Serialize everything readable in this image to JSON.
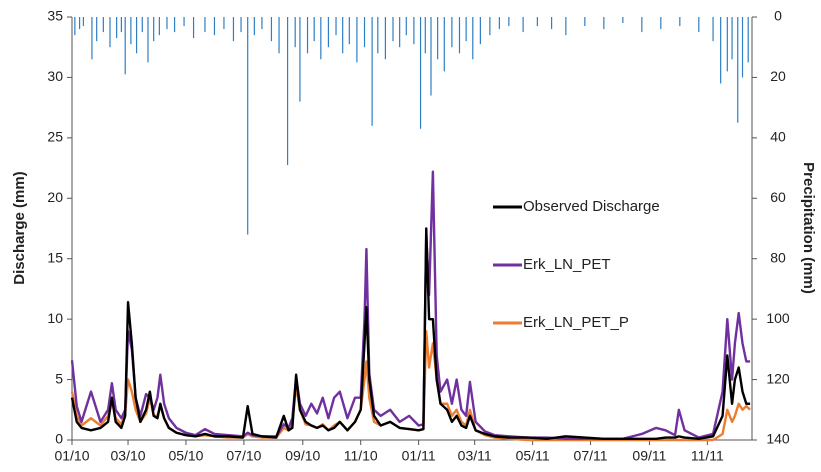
{
  "chart_data": {
    "type": "line",
    "y_label": "Discharge (mm)",
    "y2_label": "Precipitation (mm)",
    "x": [
      0,
      5,
      10,
      20,
      30,
      38,
      42,
      46,
      52,
      56,
      59,
      63,
      67,
      72,
      78,
      82,
      86,
      90,
      93,
      97,
      102,
      110,
      120,
      130,
      140,
      150,
      165,
      180,
      185,
      190,
      200,
      215,
      223,
      228,
      232,
      236,
      240,
      246,
      252,
      258,
      264,
      270,
      276,
      282,
      290,
      298,
      304,
      308,
      310,
      313,
      318,
      325,
      335,
      345,
      355,
      365,
      370,
      373,
      376,
      380,
      384,
      388,
      395,
      400,
      405,
      410,
      415,
      419,
      425,
      435,
      445,
      460,
      480,
      500,
      520,
      540,
      560,
      580,
      600,
      615,
      625,
      635,
      639,
      645,
      660,
      675,
      685,
      690,
      695,
      698,
      702,
      706,
      710,
      714
    ],
    "xlim": [
      0,
      716
    ],
    "xticks": [
      {
        "value": 0,
        "label": "01/10"
      },
      {
        "value": 59,
        "label": "03/10"
      },
      {
        "value": 120,
        "label": "05/10"
      },
      {
        "value": 181,
        "label": "07/10"
      },
      {
        "value": 243,
        "label": "09/10"
      },
      {
        "value": 304,
        "label": "11/10"
      },
      {
        "value": 365,
        "label": "01/11"
      },
      {
        "value": 424,
        "label": "03/11"
      },
      {
        "value": 485,
        "label": "05/11"
      },
      {
        "value": 546,
        "label": "07/11"
      },
      {
        "value": 608,
        "label": "09/11"
      },
      {
        "value": 669,
        "label": "11/11"
      }
    ],
    "ylim": [
      0,
      35
    ],
    "yticks": [
      0,
      5,
      10,
      15,
      20,
      25,
      30,
      35
    ],
    "y2lim": [
      140,
      0
    ],
    "y2ticks": [
      0,
      20,
      40,
      60,
      80,
      100,
      120,
      140
    ],
    "series": [
      {
        "type": "bar",
        "axis": "y2",
        "color": "#2e7fc4",
        "x": [
          3,
          8,
          12,
          21,
          26,
          33,
          40,
          47,
          52,
          56,
          62,
          68,
          74,
          80,
          86,
          92,
          100,
          108,
          118,
          128,
          140,
          150,
          160,
          170,
          178,
          185,
          192,
          200,
          210,
          218,
          227,
          235,
          240,
          248,
          255,
          262,
          270,
          278,
          285,
          292,
          300,
          308,
          316,
          322,
          330,
          338,
          345,
          352,
          360,
          367,
          372,
          378,
          385,
          392,
          400,
          408,
          415,
          422,
          430,
          440,
          450,
          460,
          475,
          490,
          505,
          520,
          540,
          560,
          580,
          600,
          620,
          640,
          660,
          675,
          683,
          690,
          695,
          701,
          706,
          712
        ],
        "values": [
          6,
          4,
          3,
          14,
          8,
          5,
          10,
          7,
          5,
          19,
          9,
          12,
          5,
          15,
          8,
          6,
          4,
          5,
          3,
          7,
          5,
          6,
          4,
          8,
          5,
          72,
          6,
          4,
          8,
          12,
          49,
          10,
          28,
          12,
          8,
          14,
          10,
          6,
          12,
          9,
          15,
          10,
          36,
          12,
          14,
          8,
          10,
          6,
          9,
          37,
          12,
          26,
          14,
          18,
          10,
          12,
          8,
          14,
          9,
          6,
          4,
          3,
          5,
          3,
          4,
          6,
          3,
          4,
          2,
          5,
          4,
          3,
          5,
          8,
          22,
          18,
          14,
          35,
          20,
          15
        ]
      },
      {
        "name": "Observed Discharge",
        "color": "#000000",
        "values": [
          3.5,
          1.5,
          1.0,
          0.8,
          1.0,
          1.5,
          3.5,
          1.5,
          1.0,
          2.0,
          11.4,
          8.0,
          3.5,
          1.5,
          2.5,
          4.0,
          2.0,
          1.8,
          3.0,
          1.8,
          1.0,
          0.6,
          0.4,
          0.3,
          0.5,
          0.3,
          0.3,
          0.2,
          2.8,
          0.5,
          0.3,
          0.2,
          2.0,
          0.8,
          1.0,
          5.4,
          2.5,
          1.5,
          1.2,
          1.0,
          1.2,
          0.8,
          1.0,
          1.5,
          0.8,
          1.5,
          2.5,
          8.0,
          11.0,
          5.0,
          2.0,
          1.2,
          1.5,
          1.0,
          0.9,
          0.8,
          0.9,
          17.5,
          10.0,
          10.0,
          5.0,
          3.0,
          2.5,
          1.5,
          2.0,
          1.2,
          1.0,
          2.0,
          0.8,
          0.5,
          0.3,
          0.2,
          0.2,
          0.1,
          0.3,
          0.2,
          0.1,
          0.1,
          0.1,
          0.1,
          0.2,
          0.2,
          0.3,
          0.2,
          0.1,
          0.3,
          2.0,
          7.0,
          3.0,
          5.0,
          6.0,
          4.0,
          3.0,
          3.0
        ]
      },
      {
        "name": "Erk_LN_PET",
        "color": "#7030a0",
        "values": [
          6.6,
          2.8,
          1.5,
          4.0,
          1.5,
          2.5,
          4.7,
          2.5,
          1.8,
          2.5,
          9.0,
          7.5,
          3.5,
          2.0,
          3.8,
          3.5,
          2.5,
          3.5,
          5.4,
          3.0,
          1.8,
          1.0,
          0.6,
          0.4,
          0.9,
          0.5,
          0.4,
          0.3,
          0.6,
          0.4,
          0.3,
          0.3,
          1.3,
          1.0,
          1.8,
          5.2,
          3.0,
          2.0,
          3.0,
          2.2,
          3.5,
          1.8,
          3.5,
          4.0,
          1.8,
          3.5,
          3.5,
          10.0,
          15.8,
          5.5,
          2.5,
          2.0,
          2.5,
          1.5,
          2.0,
          1.2,
          1.3,
          17.0,
          12.0,
          22.2,
          7.0,
          4.0,
          5.0,
          3.0,
          5.0,
          2.5,
          2.0,
          4.8,
          1.5,
          0.7,
          0.4,
          0.3,
          0.2,
          0.2,
          0.1,
          0.1,
          0.1,
          0.1,
          0.5,
          1.0,
          0.8,
          0.4,
          2.5,
          0.8,
          0.2,
          0.5,
          4.0,
          10.0,
          5.0,
          8.0,
          10.5,
          8.0,
          6.5,
          6.5
        ]
      },
      {
        "name": "Erk_LN_PET_P",
        "color": "#ed7d31",
        "values": [
          4.0,
          2.0,
          1.2,
          1.8,
          1.2,
          2.0,
          3.5,
          1.8,
          1.3,
          2.2,
          5.0,
          4.0,
          2.5,
          1.5,
          2.2,
          3.5,
          2.0,
          2.0,
          2.8,
          1.8,
          1.0,
          0.6,
          0.4,
          0.3,
          0.4,
          0.3,
          0.2,
          0.2,
          0.5,
          0.3,
          0.2,
          0.2,
          1.0,
          0.8,
          1.5,
          4.5,
          2.5,
          1.3,
          1.2,
          1.0,
          1.3,
          0.8,
          1.2,
          1.5,
          0.8,
          1.5,
          2.5,
          5.0,
          6.5,
          3.5,
          1.5,
          1.2,
          1.5,
          1.0,
          0.9,
          0.8,
          0.9,
          9.0,
          6.0,
          8.0,
          5.0,
          3.0,
          3.0,
          2.0,
          2.5,
          1.5,
          1.2,
          2.5,
          0.8,
          0.4,
          0.2,
          0.1,
          0.0,
          0.0,
          0.0,
          0.0,
          0.0,
          0.0,
          0.0,
          0.0,
          0.0,
          0.0,
          0.0,
          0.0,
          0.0,
          0.0,
          0.5,
          2.5,
          1.5,
          2.0,
          3.0,
          2.5,
          2.8,
          2.5
        ]
      }
    ]
  }
}
